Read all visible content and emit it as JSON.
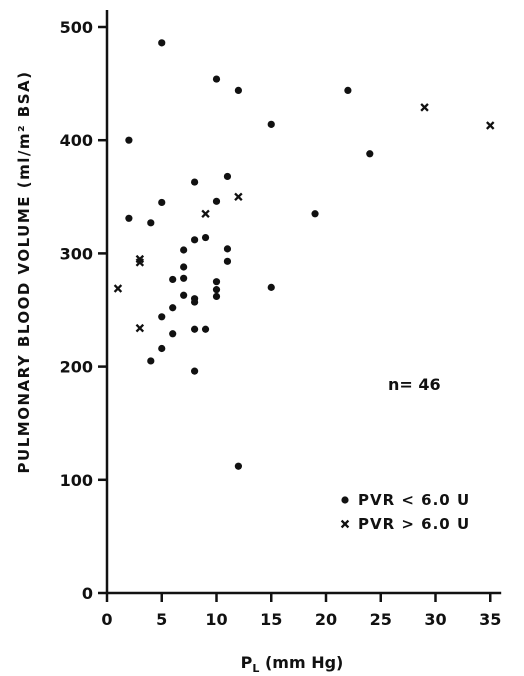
{
  "chart_data": {
    "type": "scatter",
    "title": "",
    "xlabel_main": "P",
    "xlabel_sub": "L",
    "xlabel_rest": " (mm Hg)",
    "ylabel": "PULMONARY BLOOD VOLUME (ml/m² BSA)",
    "xlim": [
      0,
      36
    ],
    "ylim": [
      0,
      515
    ],
    "xticks": [
      "0",
      "5",
      "10",
      "15",
      "20",
      "25",
      "30",
      "35"
    ],
    "yticks": [
      "0",
      "100",
      "200",
      "300",
      "400",
      "500"
    ],
    "grid": false,
    "annotation": "n= 46",
    "legend_position": "bottom-right",
    "series": [
      {
        "name": "PVR < 6.0 U",
        "marker": "dot",
        "points": [
          [
            2,
            400
          ],
          [
            2,
            331
          ],
          [
            4,
            327
          ],
          [
            4,
            205
          ],
          [
            5,
            486
          ],
          [
            5,
            345
          ],
          [
            5,
            244
          ],
          [
            5,
            216
          ],
          [
            6,
            277
          ],
          [
            6,
            252
          ],
          [
            6,
            229
          ],
          [
            7,
            303
          ],
          [
            7,
            288
          ],
          [
            7,
            278
          ],
          [
            7,
            263
          ],
          [
            8,
            363
          ],
          [
            8,
            312
          ],
          [
            8,
            260
          ],
          [
            8,
            257
          ],
          [
            8,
            233
          ],
          [
            8,
            196
          ],
          [
            9,
            314
          ],
          [
            9,
            233
          ],
          [
            10,
            454
          ],
          [
            10,
            346
          ],
          [
            10,
            275
          ],
          [
            10,
            268
          ],
          [
            10,
            262
          ],
          [
            11,
            368
          ],
          [
            11,
            304
          ],
          [
            11,
            293
          ],
          [
            12,
            444
          ],
          [
            12,
            112
          ],
          [
            15,
            414
          ],
          [
            15,
            270
          ],
          [
            19,
            335
          ],
          [
            22,
            444
          ],
          [
            24,
            388
          ]
        ]
      },
      {
        "name": "PVR > 6.0 U",
        "marker": "cross",
        "points": [
          [
            1,
            269
          ],
          [
            3,
            295
          ],
          [
            3,
            292
          ],
          [
            3,
            234
          ],
          [
            9,
            335
          ],
          [
            12,
            350
          ],
          [
            29,
            429
          ],
          [
            35,
            413
          ]
        ]
      }
    ]
  }
}
